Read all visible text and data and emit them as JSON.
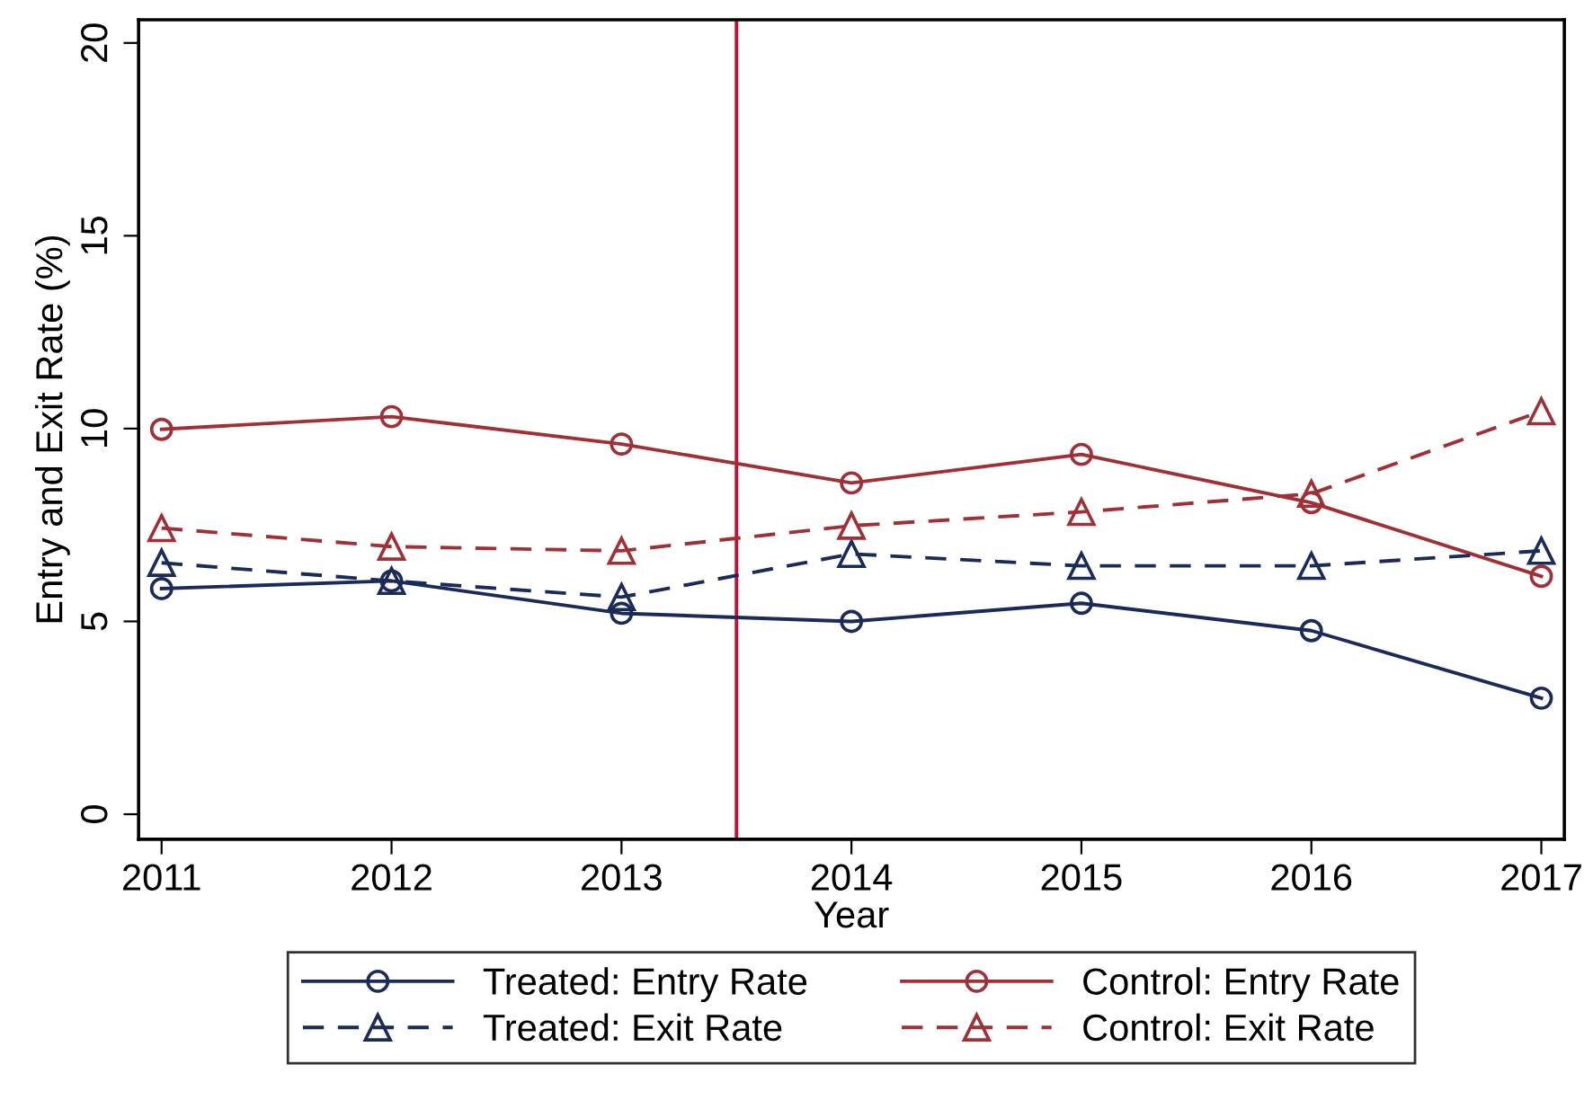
{
  "chart_data": {
    "type": "line",
    "xlabel": "Year",
    "ylabel": "Entry and Exit Rate (%)",
    "x": [
      2011,
      2012,
      2013,
      2014,
      2015,
      2016,
      2017
    ],
    "xlim": [
      2010.9,
      2017.1
    ],
    "xticks": [
      2011,
      2012,
      2013,
      2014,
      2015,
      2016,
      2017
    ],
    "ylim": [
      -0.65,
      20.6
    ],
    "yticks": [
      0,
      5,
      10,
      15,
      20
    ],
    "grid": false,
    "legend": "bottom",
    "ref_lines": [
      {
        "axis": "x",
        "value": 2013.5,
        "color": "#c8102e",
        "line_style": "solid"
      }
    ],
    "series": [
      {
        "name": "Treated: Entry Rate",
        "color": "#1a2b5a",
        "marker": "circle",
        "line_style": "solid",
        "values": [
          5.85,
          6.05,
          5.21,
          5.0,
          5.47,
          4.76,
          3.01
        ]
      },
      {
        "name": "Control: Entry Rate",
        "color": "#a03035",
        "marker": "circle",
        "line_style": "solid",
        "values": [
          9.98,
          10.31,
          9.6,
          8.59,
          9.33,
          8.08,
          6.17
        ]
      },
      {
        "name": "Treated: Exit Rate",
        "color": "#1a2b5a",
        "marker": "triangle",
        "line_style": "dashed",
        "values": [
          6.52,
          6.05,
          5.63,
          6.75,
          6.44,
          6.44,
          6.83
        ]
      },
      {
        "name": "Control: Exit Rate",
        "color": "#a03035",
        "marker": "triangle",
        "line_style": "dashed",
        "values": [
          7.42,
          6.94,
          6.83,
          7.48,
          7.84,
          8.31,
          10.45
        ]
      }
    ]
  }
}
